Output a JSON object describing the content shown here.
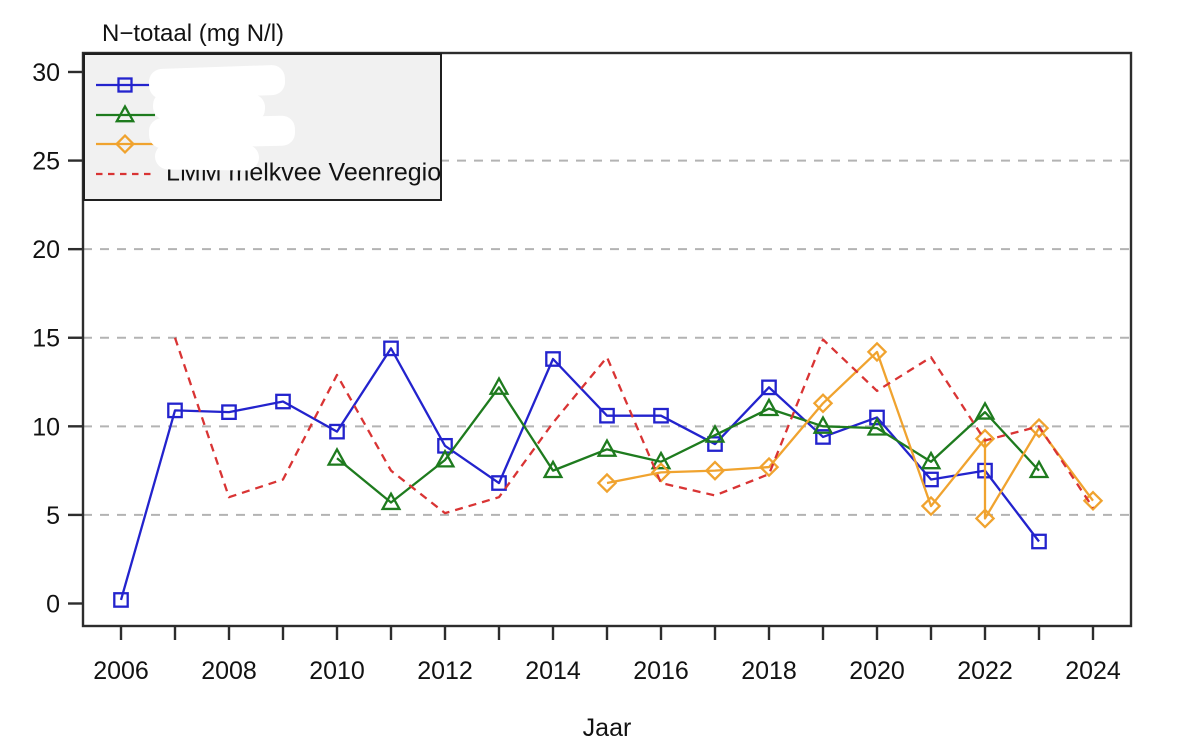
{
  "window": {
    "background": "#ffffff"
  },
  "chart_title": "N−totaal (mg N/l)",
  "x_axis_title": "Jaar",
  "colors": {
    "blue_series": "#2323cd",
    "green_series": "#1e7b1e",
    "orange_series": "#f0a32f",
    "red_dashed_series": "#d93434",
    "gridline": "#b3b3b3",
    "axis_box": "#2d2d2d",
    "legend_background": "#f1f1f1",
    "text": "#121212"
  },
  "legend": {
    "position": "topleft",
    "items": [
      {
        "label": "",
        "redacted": true,
        "color": "#2323cd",
        "marker": "square",
        "line": "solid"
      },
      {
        "label": "",
        "redacted": true,
        "color": "#1e7b1e",
        "marker": "triangle",
        "line": "solid"
      },
      {
        "label": "",
        "redacted": true,
        "color": "#f0a32f",
        "marker": "diamond",
        "line": "solid"
      },
      {
        "label": "LMM melkvee Veenregio",
        "redacted": false,
        "color": "#d93434",
        "marker": "none",
        "line": "dashed"
      }
    ]
  },
  "chart_data": {
    "type": "line",
    "title": "N−totaal (mg N/l)",
    "xlabel": "Jaar",
    "ylabel": "N−totaal (mg N/l)",
    "xlim": [
      2005.3,
      2024.7
    ],
    "ylim": [
      -1.2,
      31.2
    ],
    "y_ticks": [
      0,
      5,
      10,
      15,
      20,
      25,
      30
    ],
    "y_gridlines": [
      5,
      10,
      15,
      20,
      25
    ],
    "grid_style": "dashed-horizontal",
    "x_tick_years": [
      2006,
      2007,
      2008,
      2009,
      2010,
      2011,
      2012,
      2013,
      2014,
      2015,
      2016,
      2017,
      2018,
      2019,
      2020,
      2021,
      2022,
      2023,
      2024
    ],
    "x_labeled_years": [
      2006,
      2008,
      2010,
      2012,
      2014,
      2016,
      2018,
      2020,
      2022,
      2024
    ],
    "legend_position": "topleft",
    "series": [
      {
        "name": "blue-squares",
        "label": "",
        "color": "#2323cd",
        "marker": "square",
        "line": "solid",
        "points": [
          [
            2006,
            0.2
          ],
          [
            2007,
            10.9
          ],
          [
            2008,
            10.8
          ],
          [
            2009,
            11.4
          ],
          [
            2010,
            9.7
          ],
          [
            2011,
            14.4
          ],
          [
            2012,
            8.9
          ],
          [
            2013,
            6.8
          ],
          [
            2014,
            13.8
          ],
          [
            2015,
            10.6
          ],
          [
            2016,
            10.6
          ],
          [
            2017,
            9.0
          ],
          [
            2018,
            12.2
          ],
          [
            2019,
            9.4
          ],
          [
            2020,
            10.5
          ],
          [
            2021,
            7.0
          ],
          [
            2022,
            7.5
          ],
          [
            2023,
            3.5
          ]
        ]
      },
      {
        "name": "green-triangles",
        "label": "",
        "color": "#1e7b1e",
        "marker": "triangle",
        "line": "solid",
        "points": [
          [
            2010,
            8.2
          ],
          [
            2011,
            5.7
          ],
          [
            2012,
            8.1
          ],
          [
            2013,
            12.2
          ],
          [
            2014,
            7.5
          ],
          [
            2015,
            8.7
          ],
          [
            2016,
            8.0
          ],
          [
            2017,
            9.5
          ],
          [
            2018,
            11.0
          ],
          [
            2019,
            10.0
          ],
          [
            2020,
            9.9
          ],
          [
            2021,
            8.0
          ],
          [
            2022,
            10.8
          ],
          [
            2023,
            7.5
          ]
        ]
      },
      {
        "name": "orange-diamonds",
        "label": "",
        "color": "#f0a32f",
        "marker": "diamond",
        "line": "solid",
        "points": [
          [
            2015,
            6.8
          ],
          [
            2016,
            7.4
          ],
          [
            2017,
            7.5
          ],
          [
            2018,
            7.7
          ],
          [
            2019,
            11.3
          ],
          [
            2020,
            14.2
          ],
          [
            2021,
            5.5
          ],
          [
            2022,
            9.3
          ],
          [
            2022,
            4.8
          ],
          [
            2023,
            9.9
          ],
          [
            2024,
            5.8
          ]
        ]
      },
      {
        "name": "lmm-melkvee-veenregio",
        "label": "LMM melkvee Veenregio",
        "color": "#d93434",
        "marker": "none",
        "line": "dashed",
        "points": [
          [
            2007,
            15.0
          ],
          [
            2008,
            6.0
          ],
          [
            2009,
            7.0
          ],
          [
            2010,
            12.9
          ],
          [
            2011,
            7.5
          ],
          [
            2012,
            5.1
          ],
          [
            2013,
            6.0
          ],
          [
            2014,
            10.2
          ],
          [
            2015,
            13.9
          ],
          [
            2016,
            6.8
          ],
          [
            2017,
            6.1
          ],
          [
            2018,
            7.3
          ],
          [
            2019,
            14.9
          ],
          [
            2020,
            12.0
          ],
          [
            2021,
            13.9
          ],
          [
            2022,
            9.2
          ],
          [
            2023,
            10.0
          ],
          [
            2024,
            5.4
          ]
        ]
      }
    ]
  }
}
